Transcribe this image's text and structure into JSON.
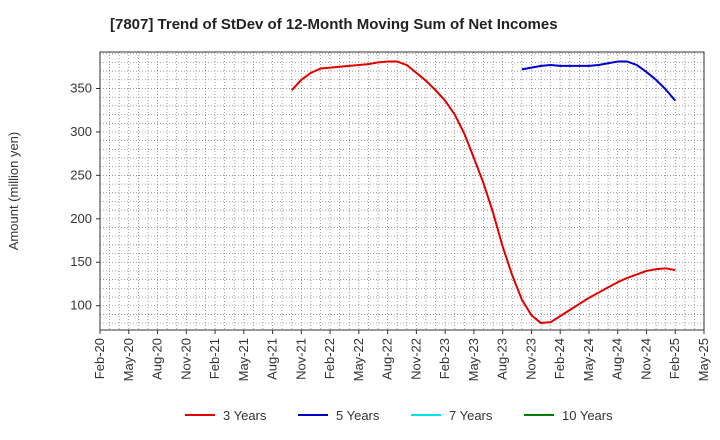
{
  "chart_data": {
    "type": "line",
    "title": "[7807]  Trend of StDev of 12-Month Moving Sum of Net Incomes",
    "xlabel": "",
    "ylabel": "Amount (million yen)",
    "ylim": [
      72,
      392
    ],
    "yticks": [
      100,
      150,
      200,
      250,
      300,
      350
    ],
    "xlim": [
      "2020-02",
      "2025-05"
    ],
    "xticks": [
      "Feb-20",
      "May-20",
      "Aug-20",
      "Nov-20",
      "Feb-21",
      "May-21",
      "Aug-21",
      "Nov-21",
      "Feb-22",
      "May-22",
      "Aug-22",
      "Nov-22",
      "Feb-23",
      "May-23",
      "Aug-23",
      "Nov-23",
      "Feb-24",
      "May-24",
      "Aug-24",
      "Nov-24",
      "Feb-25",
      "May-25"
    ],
    "grid": true,
    "legend_position": "bottom",
    "series": [
      {
        "name": "3 Years",
        "color": "#e00000",
        "points": [
          [
            "2021-10",
            348
          ],
          [
            "2021-11",
            360
          ],
          [
            "2021-12",
            368
          ],
          [
            "2022-01",
            373
          ],
          [
            "2022-02",
            374
          ],
          [
            "2022-03",
            375
          ],
          [
            "2022-04",
            376
          ],
          [
            "2022-05",
            377
          ],
          [
            "2022-06",
            378
          ],
          [
            "2022-07",
            380
          ],
          [
            "2022-08",
            381
          ],
          [
            "2022-09",
            381
          ],
          [
            "2022-10",
            377
          ],
          [
            "2022-11",
            368
          ],
          [
            "2022-12",
            359
          ],
          [
            "2023-01",
            348
          ],
          [
            "2023-02",
            336
          ],
          [
            "2023-03",
            320
          ],
          [
            "2023-04",
            298
          ],
          [
            "2023-05",
            270
          ],
          [
            "2023-06",
            241
          ],
          [
            "2023-07",
            207
          ],
          [
            "2023-08",
            168
          ],
          [
            "2023-09",
            135
          ],
          [
            "2023-10",
            107
          ],
          [
            "2023-11",
            89
          ],
          [
            "2023-12",
            80
          ],
          [
            "2024-01",
            81
          ],
          [
            "2024-02",
            88
          ],
          [
            "2024-03",
            95
          ],
          [
            "2024-04",
            102
          ],
          [
            "2024-05",
            109
          ],
          [
            "2024-06",
            115
          ],
          [
            "2024-07",
            121
          ],
          [
            "2024-08",
            127
          ],
          [
            "2024-09",
            132
          ],
          [
            "2024-10",
            136
          ],
          [
            "2024-11",
            140
          ],
          [
            "2024-12",
            142
          ],
          [
            "2025-01",
            143
          ],
          [
            "2025-02",
            141
          ]
        ]
      },
      {
        "name": "5 Years",
        "color": "#0000cc",
        "points": [
          [
            "2023-10",
            372
          ],
          [
            "2023-11",
            374
          ],
          [
            "2023-12",
            376
          ],
          [
            "2024-01",
            377
          ],
          [
            "2024-02",
            376
          ],
          [
            "2024-03",
            376
          ],
          [
            "2024-04",
            376
          ],
          [
            "2024-05",
            376
          ],
          [
            "2024-06",
            377
          ],
          [
            "2024-07",
            379
          ],
          [
            "2024-08",
            381
          ],
          [
            "2024-09",
            381
          ],
          [
            "2024-10",
            377
          ],
          [
            "2024-11",
            369
          ],
          [
            "2024-12",
            360
          ],
          [
            "2025-01",
            349
          ],
          [
            "2025-02",
            336
          ]
        ]
      },
      {
        "name": "7 Years",
        "color": "#00e5ee",
        "points": []
      },
      {
        "name": "10 Years",
        "color": "#008000",
        "points": []
      }
    ]
  }
}
